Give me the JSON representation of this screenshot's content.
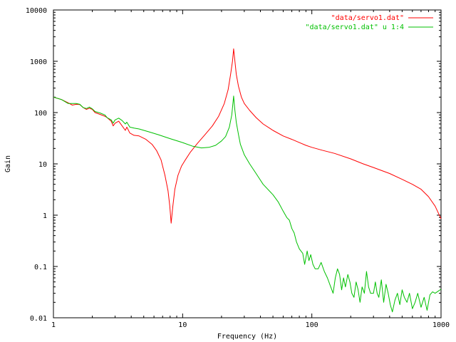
{
  "chart_data": {
    "type": "line",
    "title": "",
    "xlabel": "Frequency (Hz)",
    "ylabel": "Gain",
    "x_scale": "log",
    "y_scale": "log",
    "xlim": [
      1,
      1000
    ],
    "ylim": [
      0.01,
      10000
    ],
    "grid": false,
    "legend_position": "top-right",
    "x_ticks": [
      {
        "value": 1,
        "label": "1"
      },
      {
        "value": 10,
        "label": "10"
      },
      {
        "value": 100,
        "label": "100"
      },
      {
        "value": 1000,
        "label": "1000"
      }
    ],
    "y_ticks": [
      {
        "value": 0.01,
        "label": "0.01"
      },
      {
        "value": 0.1,
        "label": "0.1"
      },
      {
        "value": 1,
        "label": "1"
      },
      {
        "value": 10,
        "label": "10"
      },
      {
        "value": 100,
        "label": "100"
      },
      {
        "value": 1000,
        "label": "1000"
      },
      {
        "value": 10000,
        "label": "10000"
      }
    ],
    "series": [
      {
        "name": "\"data/servo1.dat\"",
        "color": "#ff0000",
        "points": [
          [
            1.0,
            200
          ],
          [
            1.15,
            180
          ],
          [
            1.3,
            155
          ],
          [
            1.4,
            140
          ],
          [
            1.5,
            145
          ],
          [
            1.6,
            143
          ],
          [
            1.7,
            125
          ],
          [
            1.8,
            115
          ],
          [
            1.9,
            122
          ],
          [
            2.0,
            115
          ],
          [
            2.1,
            100
          ],
          [
            2.3,
            92
          ],
          [
            2.5,
            85
          ],
          [
            2.6,
            80
          ],
          [
            2.8,
            68
          ],
          [
            2.9,
            55
          ],
          [
            3.0,
            62
          ],
          [
            3.2,
            68
          ],
          [
            3.4,
            55
          ],
          [
            3.6,
            45
          ],
          [
            3.7,
            52
          ],
          [
            3.9,
            40
          ],
          [
            4.2,
            36
          ],
          [
            4.6,
            35
          ],
          [
            5.2,
            30
          ],
          [
            5.8,
            24
          ],
          [
            6.3,
            18
          ],
          [
            6.8,
            12
          ],
          [
            7.3,
            6.0
          ],
          [
            7.7,
            3.0
          ],
          [
            7.95,
            1.5
          ],
          [
            8.15,
            0.7
          ],
          [
            8.4,
            1.5
          ],
          [
            8.7,
            3.2
          ],
          [
            9.2,
            6.0
          ],
          [
            9.8,
            9.0
          ],
          [
            10.5,
            12
          ],
          [
            11.5,
            17
          ],
          [
            13,
            25
          ],
          [
            15,
            38
          ],
          [
            17,
            55
          ],
          [
            19,
            85
          ],
          [
            21,
            150
          ],
          [
            22.5,
            280
          ],
          [
            23.5,
            550
          ],
          [
            24.3,
            1000
          ],
          [
            24.8,
            1750
          ],
          [
            25.3,
            1100
          ],
          [
            26,
            560
          ],
          [
            27,
            330
          ],
          [
            28.5,
            200
          ],
          [
            30,
            150
          ],
          [
            33,
            110
          ],
          [
            37,
            80
          ],
          [
            42,
            60
          ],
          [
            50,
            45
          ],
          [
            60,
            35
          ],
          [
            70,
            30
          ],
          [
            80,
            26
          ],
          [
            90,
            23
          ],
          [
            100,
            21
          ],
          [
            120,
            18.5
          ],
          [
            150,
            16
          ],
          [
            200,
            12.5
          ],
          [
            250,
            10
          ],
          [
            300,
            8.5
          ],
          [
            400,
            6.5
          ],
          [
            500,
            5.0
          ],
          [
            600,
            4.0
          ],
          [
            700,
            3.2
          ],
          [
            800,
            2.3
          ],
          [
            900,
            1.5
          ],
          [
            1000,
            0.85
          ]
        ]
      },
      {
        "name": "\"data/servo1.dat\" u 1:4",
        "color": "#00c000",
        "points": [
          [
            1.0,
            200
          ],
          [
            1.15,
            180
          ],
          [
            1.3,
            150
          ],
          [
            1.4,
            150
          ],
          [
            1.5,
            150
          ],
          [
            1.6,
            145
          ],
          [
            1.7,
            125
          ],
          [
            1.8,
            120
          ],
          [
            1.9,
            128
          ],
          [
            2.0,
            118
          ],
          [
            2.1,
            105
          ],
          [
            2.3,
            98
          ],
          [
            2.5,
            90
          ],
          [
            2.6,
            80
          ],
          [
            2.8,
            72
          ],
          [
            2.9,
            62
          ],
          [
            3.0,
            72
          ],
          [
            3.2,
            78
          ],
          [
            3.4,
            70
          ],
          [
            3.6,
            60
          ],
          [
            3.7,
            65
          ],
          [
            3.9,
            52
          ],
          [
            4.2,
            50
          ],
          [
            4.6,
            48
          ],
          [
            5.5,
            42
          ],
          [
            6.5,
            37
          ],
          [
            8,
            31
          ],
          [
            10,
            26
          ],
          [
            12,
            22
          ],
          [
            14,
            20.5
          ],
          [
            16,
            21
          ],
          [
            18,
            23
          ],
          [
            20,
            28
          ],
          [
            21.5,
            34
          ],
          [
            23,
            52
          ],
          [
            24,
            90
          ],
          [
            24.8,
            210
          ],
          [
            25.3,
            120
          ],
          [
            26,
            65
          ],
          [
            27,
            38
          ],
          [
            28,
            24
          ],
          [
            30,
            15
          ],
          [
            33,
            10
          ],
          [
            37,
            6.5
          ],
          [
            42,
            4.0
          ],
          [
            50,
            2.5
          ],
          [
            55,
            1.8
          ],
          [
            60,
            1.2
          ],
          [
            64,
            0.9
          ],
          [
            67,
            0.8
          ],
          [
            70,
            0.55
          ],
          [
            73,
            0.45
          ],
          [
            76,
            0.3
          ],
          [
            80,
            0.22
          ],
          [
            85,
            0.18
          ],
          [
            88,
            0.11
          ],
          [
            92,
            0.2
          ],
          [
            95,
            0.13
          ],
          [
            98,
            0.17
          ],
          [
            102,
            0.11
          ],
          [
            106,
            0.09
          ],
          [
            112,
            0.09
          ],
          [
            118,
            0.12
          ],
          [
            125,
            0.08
          ],
          [
            132,
            0.06
          ],
          [
            140,
            0.04
          ],
          [
            146,
            0.03
          ],
          [
            152,
            0.06
          ],
          [
            158,
            0.09
          ],
          [
            164,
            0.07
          ],
          [
            170,
            0.035
          ],
          [
            176,
            0.06
          ],
          [
            182,
            0.04
          ],
          [
            190,
            0.07
          ],
          [
            197,
            0.05
          ],
          [
            204,
            0.03
          ],
          [
            212,
            0.025
          ],
          [
            220,
            0.05
          ],
          [
            228,
            0.035
          ],
          [
            236,
            0.02
          ],
          [
            245,
            0.04
          ],
          [
            255,
            0.03
          ],
          [
            265,
            0.08
          ],
          [
            275,
            0.04
          ],
          [
            285,
            0.03
          ],
          [
            300,
            0.03
          ],
          [
            310,
            0.05
          ],
          [
            320,
            0.03
          ],
          [
            330,
            0.025
          ],
          [
            345,
            0.055
          ],
          [
            360,
            0.02
          ],
          [
            375,
            0.045
          ],
          [
            390,
            0.03
          ],
          [
            405,
            0.018
          ],
          [
            420,
            0.013
          ],
          [
            440,
            0.022
          ],
          [
            460,
            0.03
          ],
          [
            480,
            0.018
          ],
          [
            500,
            0.035
          ],
          [
            520,
            0.025
          ],
          [
            545,
            0.02
          ],
          [
            570,
            0.03
          ],
          [
            600,
            0.015
          ],
          [
            630,
            0.02
          ],
          [
            660,
            0.03
          ],
          [
            700,
            0.016
          ],
          [
            740,
            0.025
          ],
          [
            780,
            0.014
          ],
          [
            820,
            0.028
          ],
          [
            860,
            0.032
          ],
          [
            900,
            0.03
          ],
          [
            950,
            0.033
          ],
          [
            1000,
            0.036
          ]
        ]
      }
    ]
  }
}
